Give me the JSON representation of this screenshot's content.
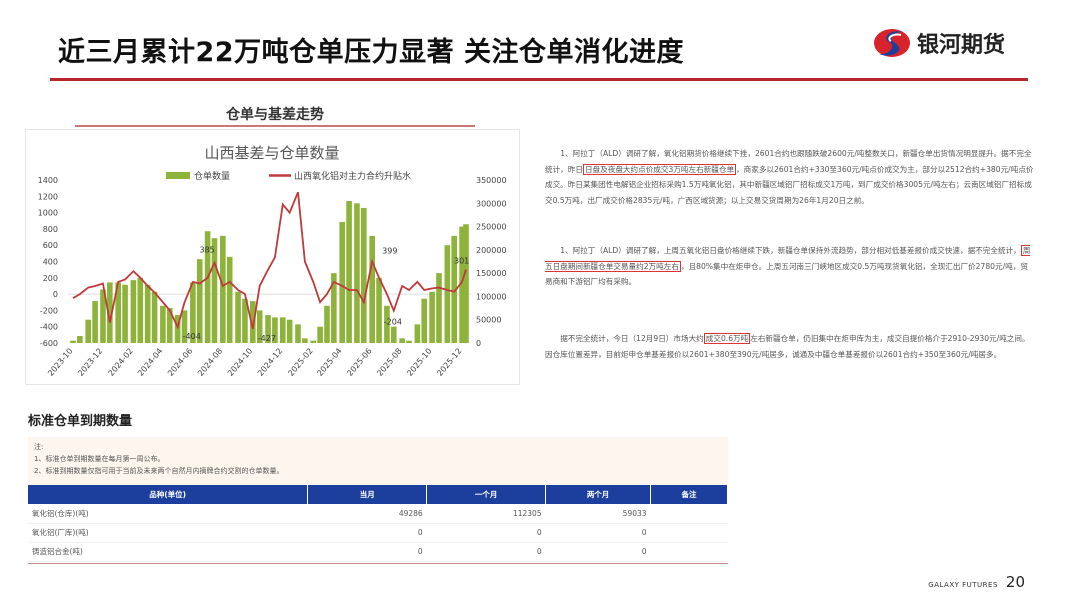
{
  "header": {
    "title": "近三月累计22万吨仓单压力显著  关注仓单消化进度",
    "logo_text": "银河期货",
    "brand_color": "#b8262b"
  },
  "section1": {
    "title": "仓单与基差走势"
  },
  "chart_data": {
    "type": "bar+line",
    "title": "山西基差与仓单数量",
    "legend": [
      "仓单数量",
      "山西氧化铝对主力合约升贴水"
    ],
    "legend_placement": "top",
    "x_ticks": [
      "2023-10",
      "2023-12",
      "2024-02",
      "2024-04",
      "2024-06",
      "2024-08",
      "2024-10",
      "2024-12",
      "2025-02",
      "2025-04",
      "2025-06",
      "2025-08",
      "2025-10",
      "2025-12"
    ],
    "y_left": {
      "ticks": [
        1400,
        1200,
        1000,
        800,
        600,
        400,
        200,
        0,
        -200,
        -400,
        -600
      ],
      "range": [
        -600,
        1400
      ]
    },
    "y_right": {
      "ticks": [
        350000,
        300000,
        250000,
        200000,
        150000,
        100000,
        50000,
        0
      ],
      "range": [
        0,
        350000
      ]
    },
    "x": [
      "2023-10-01",
      "2023-10-15",
      "2023-11-01",
      "2023-11-15",
      "2023-12-01",
      "2023-12-15",
      "2024-01-01",
      "2024-01-15",
      "2024-02-01",
      "2024-02-15",
      "2024-03-01",
      "2024-03-15",
      "2024-04-01",
      "2024-04-15",
      "2024-05-01",
      "2024-05-15",
      "2024-06-01",
      "2024-06-15",
      "2024-07-01",
      "2024-07-15",
      "2024-08-01",
      "2024-08-15",
      "2024-09-01",
      "2024-09-15",
      "2024-10-01",
      "2024-10-15",
      "2024-11-01",
      "2024-11-15",
      "2024-12-01",
      "2024-12-15",
      "2025-01-01",
      "2025-01-15",
      "2025-02-01",
      "2025-02-15",
      "2025-03-01",
      "2025-03-15",
      "2025-04-01",
      "2025-04-15",
      "2025-05-01",
      "2025-05-15",
      "2025-06-01",
      "2025-06-15",
      "2025-07-01",
      "2025-07-15",
      "2025-08-01",
      "2025-08-15",
      "2025-09-01",
      "2025-09-15",
      "2025-10-01",
      "2025-10-15",
      "2025-11-01",
      "2025-11-15",
      "2025-12-01",
      "2025-12-09"
    ],
    "series": [
      {
        "name": "仓单数量",
        "axis": "right",
        "type": "bar",
        "color": "#8db33a",
        "values": [
          5000,
          15000,
          50000,
          90000,
          115000,
          130000,
          130000,
          125000,
          135000,
          140000,
          125000,
          110000,
          80000,
          75000,
          60000,
          70000,
          130000,
          180000,
          240000,
          225000,
          230000,
          185000,
          110000,
          95000,
          90000,
          70000,
          60000,
          55000,
          55000,
          50000,
          40000,
          10000,
          5000,
          35000,
          80000,
          150000,
          260000,
          305000,
          300000,
          290000,
          230000,
          140000,
          80000,
          35000,
          10000,
          5000,
          40000,
          95000,
          110000,
          150000,
          210000,
          230000,
          250000,
          255000
        ]
      },
      {
        "name": "山西氧化铝对主力合约升贴水",
        "axis": "left",
        "type": "line",
        "color": "#c0393b",
        "values": [
          -50,
          0,
          80,
          100,
          130,
          -350,
          150,
          180,
          280,
          200,
          100,
          20,
          -100,
          -200,
          -404,
          -100,
          150,
          130,
          200,
          385,
          100,
          150,
          50,
          0,
          -427,
          100,
          300,
          450,
          1100,
          1000,
          1250,
          400,
          150,
          -100,
          0,
          150,
          100,
          50,
          50,
          -100,
          399,
          200,
          0,
          -204,
          100,
          50,
          150,
          50,
          70,
          80,
          50,
          30,
          150,
          301
        ]
      }
    ],
    "annotations": [
      "385",
      "-404",
      "-427",
      "399",
      "-204",
      "301"
    ]
  },
  "paragraphs": [
    {
      "pre": "1、阿拉丁（ALD）调研了解，氧化铝期货价格继续下挫，2601合约也跟随跌破2600元/吨整数关口，新疆仓单出货情况明显提升。据不完全统计，昨日",
      "hl": "日盘及夜盘大约点价成交3万吨左右新疆仓单",
      "post": "，商家多以2601合约+330至360元/吨点价成交为主，部分以2512合约+380元/吨点价成交。昨日某集团性电解铝企业招标采购1.5万吨氧化铝，其中新疆区域铝厂招标成交1万吨，到厂成交价格3005元/吨左右；云南区域铝厂招标成交0.5万吨，出厂成交价格2835元/吨，广西区域货源；以上交易交货周期为26年1月20日之前。"
    },
    {
      "pre": "1、阿拉丁（ALD）调研了解，上周五氧化铝日盘价格继续下跌，新疆仓单保持外流趋势，部分相对低基差报价成交快速，据不完全统计，",
      "hl": "周五日盘期间新疆仓单交易量约2万吨左右",
      "post": "，且80%集中在炬申仓。上周五河南三门峡地区成交0.5万吨现货氧化铝，全现汇出厂价2780元/吨，贸易商和下游铝厂均有采购。"
    },
    {
      "pre": "据不完全统计，今日（12月9日）市场大约",
      "hl": "成交0.6万吨",
      "post": "左右新疆仓单，仍旧集中在炬申库为主，成交自提价格介于2910-2930元/吨之间。因仓库位置差异，目前炬申仓单基差报价以2601+380至390元/吨居多，诚通及中疆仓单基差报价以2601合约+350至360元/吨居多。"
    }
  ],
  "section2": {
    "title": "标准仓单到期数量"
  },
  "note": {
    "label": "注:",
    "lines": [
      "1、标准仓单到期数量在每月第一周公布。",
      "2、标准到期数量仅指可用于当前及未来两个自然月内摘牌合约交割的仓单数量。"
    ]
  },
  "table": {
    "headers": [
      "品种(单位)",
      "当月",
      "一个月",
      "两个月",
      "备注"
    ],
    "rows": [
      [
        "氧化铝(仓库)(吨)",
        "49286",
        "112305",
        "59033",
        ""
      ],
      [
        "氧化铝(厂库)(吨)",
        "0",
        "0",
        "0",
        ""
      ],
      [
        "铸造铝合金(吨)",
        "0",
        "0",
        "0",
        ""
      ]
    ]
  },
  "footer": {
    "brand": "GALAXY FUTURES",
    "page": "20"
  }
}
